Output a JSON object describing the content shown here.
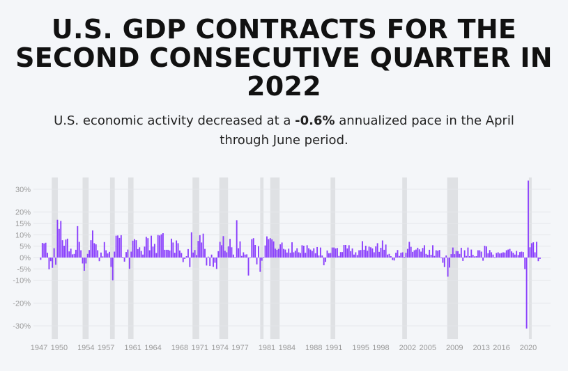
{
  "title": "U.S. GDP CONTRACTS FOR THE SECOND CONSECUTIVE QUARTER IN 2022",
  "subtitle": {
    "before": "U.S. economic activity decreased at a ",
    "highlight": "-0.6%",
    "after": " annualized pace in the April through June period."
  },
  "chart_data": {
    "type": "bar",
    "title": "U.S. GDP CONTRACTS FOR THE SECOND CONSECUTIVE QUARTER IN 2022",
    "xlabel": "",
    "ylabel": "",
    "bar_color": "#8a3ffc",
    "recession_color": "#dfe1e4",
    "ylim": [
      -35,
      35
    ],
    "y_ticks": [
      -30,
      -20,
      -10,
      -5,
      0,
      5,
      10,
      15,
      20,
      30
    ],
    "y_tick_labels": [
      "-30%",
      "-20%",
      "-10%",
      "-5%",
      "0%",
      "5%",
      "10%",
      "15%",
      "20%",
      "30%"
    ],
    "x_ticks": [
      1947,
      1950,
      1954,
      1957,
      1961,
      1964,
      1968,
      1971,
      1974,
      1977,
      1981,
      1984,
      1988,
      1991,
      1995,
      1998,
      2002,
      2005,
      2009,
      2013,
      2016,
      2020
    ],
    "x_range": [
      1947.0,
      2022.6
    ],
    "grid": true,
    "recessions": [
      [
        1948.9,
        1949.8
      ],
      [
        1953.5,
        1954.4
      ],
      [
        1957.6,
        1958.3
      ],
      [
        1960.3,
        1961.1
      ],
      [
        1969.9,
        1970.9
      ],
      [
        1973.9,
        1975.2
      ],
      [
        1980.0,
        1980.5
      ],
      [
        1981.5,
        1982.9
      ],
      [
        1990.5,
        1991.2
      ],
      [
        2001.2,
        2001.9
      ],
      [
        2007.9,
        2009.5
      ],
      [
        2020.1,
        2020.4
      ]
    ],
    "series": [
      {
        "start_year": 1947.25,
        "step": 0.25,
        "values": [
          -1,
          6.4,
          6.2,
          6.5,
          2.1,
          -5.2,
          -1.6,
          -4.5,
          4.1,
          -3.2,
          16.6,
          12.6,
          16.1,
          7.6,
          5.2,
          7.9,
          8.3,
          2.7,
          3.9,
          1.4,
          1.6,
          3.4,
          13.8,
          6.9,
          3.2,
          -2.6,
          -5.8,
          -2.6,
          1.6,
          3.3,
          7.6,
          11.9,
          6.3,
          5.8,
          3.2,
          -1.6,
          2.2,
          0.5,
          6.8,
          3.2,
          1.8,
          2.5,
          -4.1,
          -10,
          2.6,
          9.6,
          9.7,
          8.6,
          9.8,
          0.3,
          -1.8,
          2.4,
          3.5,
          -5.0,
          2.6,
          7.4,
          8.1,
          7.6,
          3.7,
          4.5,
          2.9,
          1.3,
          4.8,
          9.1,
          8.5,
          3.2,
          9.6,
          4.8,
          6.0,
          2.0,
          9.9,
          9.7,
          10.2,
          10.7,
          3.4,
          3.4,
          3.4,
          3.1,
          8.3,
          6.6,
          2.1,
          7.5,
          6.3,
          3.1,
          2.0,
          -2.0,
          -0.6,
          0.6,
          3.7,
          -4.2,
          11.1,
          2.2,
          3.3,
          1.1,
          7.3,
          9.8,
          6.6,
          10.5,
          3.8,
          -3.5,
          0.4,
          -3.7,
          1.3,
          -4.1,
          -2.3,
          -5.0,
          2.8,
          6.9,
          5.4,
          9.4,
          3.0,
          2.3,
          4.9,
          8.2,
          4.5,
          1.3,
          0.2,
          16.4,
          4.1,
          7.1,
          0.7,
          2.3,
          1.3,
          1.4,
          -7.9,
          0.0,
          8.1,
          8.5,
          5.5,
          -3.0,
          5.0,
          -6.3,
          -1.4,
          0.2,
          5.3,
          9.3,
          8.1,
          8.5,
          8.0,
          7.1,
          3.9,
          3.4,
          3.8,
          5.8,
          6.6,
          3.8,
          3.5,
          2.2,
          3.9,
          2.1,
          6.7,
          2.3,
          3.0,
          4.1,
          2.3,
          2.0,
          5.4,
          5.2,
          2.1,
          5.4,
          4.1,
          3.5,
          2.9,
          4.1,
          1.9,
          4.6,
          0.9,
          4.4,
          0.9,
          -3.4,
          -1.9,
          3.1,
          1.9,
          2.0,
          4.4,
          4.4,
          4.0,
          4.2,
          0.7,
          2.4,
          2.4,
          5.5,
          5.5,
          4.0,
          5.4,
          2.8,
          4.0,
          1.3,
          2.3,
          1.1,
          3.2,
          3.3,
          7.2,
          3.4,
          5.2,
          3.0,
          4.8,
          4.5,
          4.0,
          2.3,
          4.9,
          6.3,
          2.5,
          4.3,
          7.5,
          3.4,
          5.7,
          1.3,
          1.6,
          0.6,
          -1.1,
          -1.3,
          2.1,
          3.3,
          0.7,
          2.1,
          2.3,
          0.3,
          2.1,
          3.8,
          6.9,
          4.7,
          2.5,
          3.2,
          3.5,
          4.3,
          3.6,
          2.6,
          4.2,
          5.4,
          1.6,
          1.2,
          3.4,
          1.2,
          5.4,
          0.7,
          3.2,
          3.0,
          3.3,
          0.0,
          -2.3,
          -4.2,
          0.9,
          -8.4,
          -4.4,
          1.5,
          4.4,
          1.5,
          2.9,
          2.8,
          1.6,
          4.3,
          -1.5,
          3.2,
          0.7,
          4.4,
          0.6,
          3.5,
          1.2,
          0.5,
          0.6,
          3.2,
          3.2,
          2.6,
          -1.4,
          5.2,
          4.9,
          1.9,
          3.3,
          2.3,
          1.3,
          0.1,
          2.0,
          2.3,
          1.8,
          2.0,
          2.3,
          2.2,
          3.2,
          3.5,
          3.8,
          2.7,
          2.1,
          1.3,
          2.9,
          1.1,
          2.4,
          2.6,
          2.4,
          -5.1,
          -31.2,
          33.8,
          4.5,
          6.3,
          6.7,
          2.3,
          6.9,
          -1.6,
          -0.6
        ]
      }
    ]
  }
}
